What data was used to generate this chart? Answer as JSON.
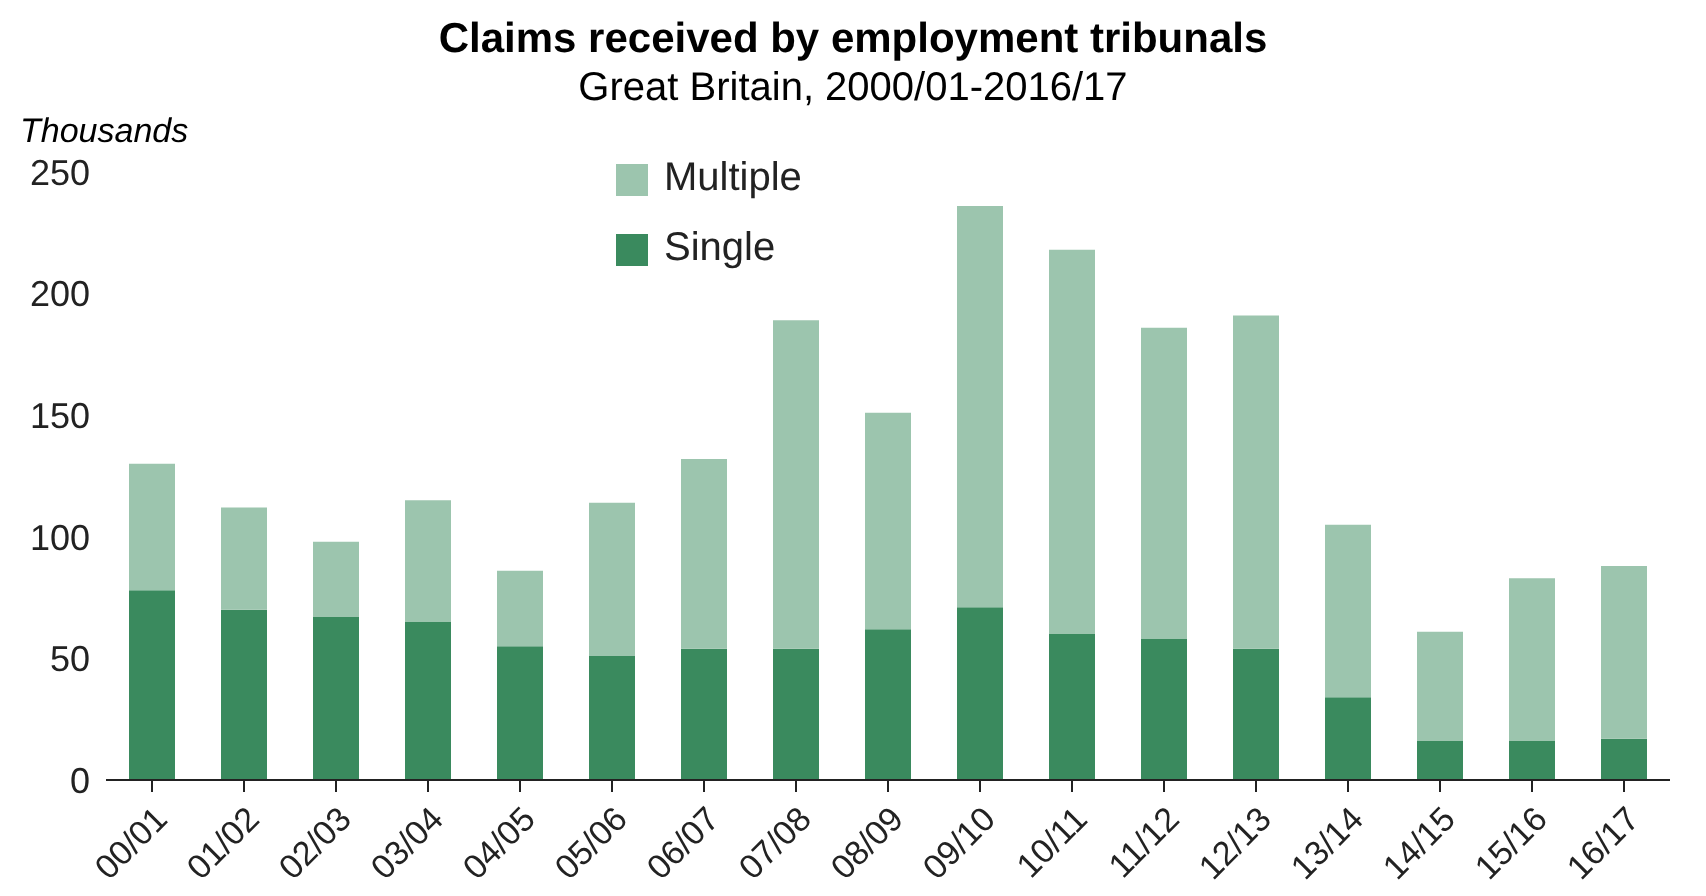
{
  "chart_data": {
    "type": "bar",
    "title": "Claims received by employment tribunals",
    "subtitle": "Great Britain, 2000/01-2016/17",
    "ylabel": "Thousands",
    "stacked": true,
    "categories": [
      "00/01",
      "01/02",
      "02/03",
      "03/04",
      "04/05",
      "05/06",
      "06/07",
      "07/08",
      "08/09",
      "09/10",
      "10/11",
      "11/12",
      "12/13",
      "13/14",
      "14/15",
      "15/16",
      "16/17"
    ],
    "series": [
      {
        "name": "Single",
        "color": "#3a8a5e",
        "values": [
          78,
          70,
          67,
          65,
          55,
          51,
          54,
          54,
          62,
          71,
          60,
          58,
          54,
          34,
          16,
          16,
          17
        ]
      },
      {
        "name": "Multiple",
        "color": "#9cc5ae",
        "values": [
          52,
          42,
          31,
          50,
          31,
          63,
          78,
          135,
          89,
          165,
          158,
          128,
          137,
          71,
          45,
          67,
          71
        ]
      }
    ],
    "ylim": [
      0,
      250
    ],
    "yticks": [
      0,
      50,
      100,
      150,
      200,
      250
    ],
    "grid": false,
    "legend": "top"
  }
}
